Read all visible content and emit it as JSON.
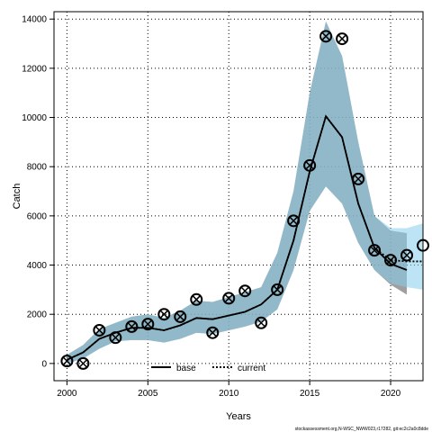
{
  "chart_data": {
    "type": "line",
    "xlabel": "Years",
    "ylabel": "Catch",
    "xlim": [
      1999.2,
      2022
    ],
    "ylim": [
      -700,
      14300
    ],
    "xticks": [
      2000,
      2005,
      2010,
      2015,
      2020
    ],
    "yticks": [
      0,
      2000,
      4000,
      6000,
      8000,
      10000,
      12000,
      14000
    ],
    "grid": true,
    "legend_position": "bottom-center",
    "legend": [
      {
        "label": "base",
        "style": "solid"
      },
      {
        "label": "current",
        "style": "dotted"
      }
    ],
    "series": [
      {
        "name": "base",
        "style": "solid",
        "color": "#000000",
        "x": [
          2000,
          2001,
          2002,
          2003,
          2004,
          2005,
          2006,
          2007,
          2008,
          2009,
          2010,
          2011,
          2012,
          2013,
          2014,
          2015,
          2016,
          2017,
          2018,
          2019,
          2020,
          2021
        ],
        "y": [
          150,
          450,
          1000,
          1250,
          1450,
          1450,
          1350,
          1550,
          1850,
          1800,
          1950,
          2100,
          2400,
          3000,
          5000,
          7800,
          10050,
          9200,
          6500,
          4700,
          4050,
          3800
        ],
        "band_low": [
          0,
          200,
          600,
          900,
          950,
          950,
          850,
          1000,
          1250,
          1200,
          1350,
          1500,
          1700,
          2200,
          3800,
          6200,
          7200,
          6500,
          4900,
          3800,
          3200,
          2800
        ],
        "band_high": [
          350,
          750,
          1400,
          1650,
          1900,
          2000,
          1850,
          2150,
          2550,
          2500,
          2700,
          2900,
          3100,
          4500,
          7000,
          11000,
          13900,
          12500,
          9000,
          6000,
          5400,
          5300
        ]
      },
      {
        "name": "current",
        "style": "dotted",
        "color": "#000000",
        "x": [
          2000,
          2001,
          2002,
          2003,
          2004,
          2005,
          2006,
          2007,
          2008,
          2009,
          2010,
          2011,
          2012,
          2013,
          2014,
          2015,
          2016,
          2017,
          2018,
          2019,
          2020,
          2021,
          2022
        ],
        "y": [
          150,
          450,
          1000,
          1250,
          1450,
          1450,
          1350,
          1550,
          1850,
          1800,
          1950,
          2100,
          2400,
          3000,
          5000,
          7800,
          10050,
          9200,
          6500,
          4700,
          4200,
          4150,
          4150
        ],
        "band_low": [
          0,
          200,
          600,
          900,
          950,
          950,
          850,
          1000,
          1250,
          1200,
          1350,
          1500,
          1700,
          2200,
          3800,
          6200,
          7200,
          6500,
          4900,
          3800,
          3250,
          3100,
          3000
        ],
        "band_high": [
          350,
          750,
          1400,
          1650,
          1900,
          2000,
          1850,
          2150,
          2550,
          2500,
          2700,
          2900,
          3100,
          4500,
          7000,
          11000,
          13900,
          12500,
          9000,
          6000,
          5500,
          5500,
          5700
        ]
      }
    ],
    "observations_base": {
      "x": [
        2000,
        2001,
        2002,
        2003,
        2004,
        2005,
        2006,
        2007,
        2008,
        2009,
        2010,
        2011,
        2012,
        2013,
        2014,
        2015,
        2016,
        2017,
        2018,
        2019,
        2020,
        2021
      ],
      "y": [
        100,
        0,
        1350,
        1050,
        1500,
        1600,
        2000,
        1900,
        2600,
        1250,
        2650,
        2950,
        1650,
        3000,
        5800,
        8050,
        13300,
        13200,
        7500,
        4600,
        4200,
        4400
      ]
    },
    "observations_current": {
      "x": [
        2000,
        2001,
        2002,
        2003,
        2004,
        2005,
        2006,
        2007,
        2008,
        2009,
        2010,
        2011,
        2012,
        2013,
        2014,
        2015,
        2016,
        2017,
        2018,
        2019,
        2020,
        2021,
        2022
      ],
      "y": [
        100,
        0,
        1350,
        1050,
        1500,
        1600,
        2000,
        1900,
        2600,
        1250,
        2650,
        2950,
        1650,
        3000,
        5800,
        8050,
        13300,
        13200,
        7500,
        4600,
        4200,
        4400,
        4800
      ]
    }
  },
  "footer": "stockassessment.org,N-WSC_NWW023,r17282, git:ec2c2a0c8dde",
  "colors": {
    "band_base": "#7f7f7f",
    "band_current": "#87ceeb",
    "grid": "#000000"
  }
}
